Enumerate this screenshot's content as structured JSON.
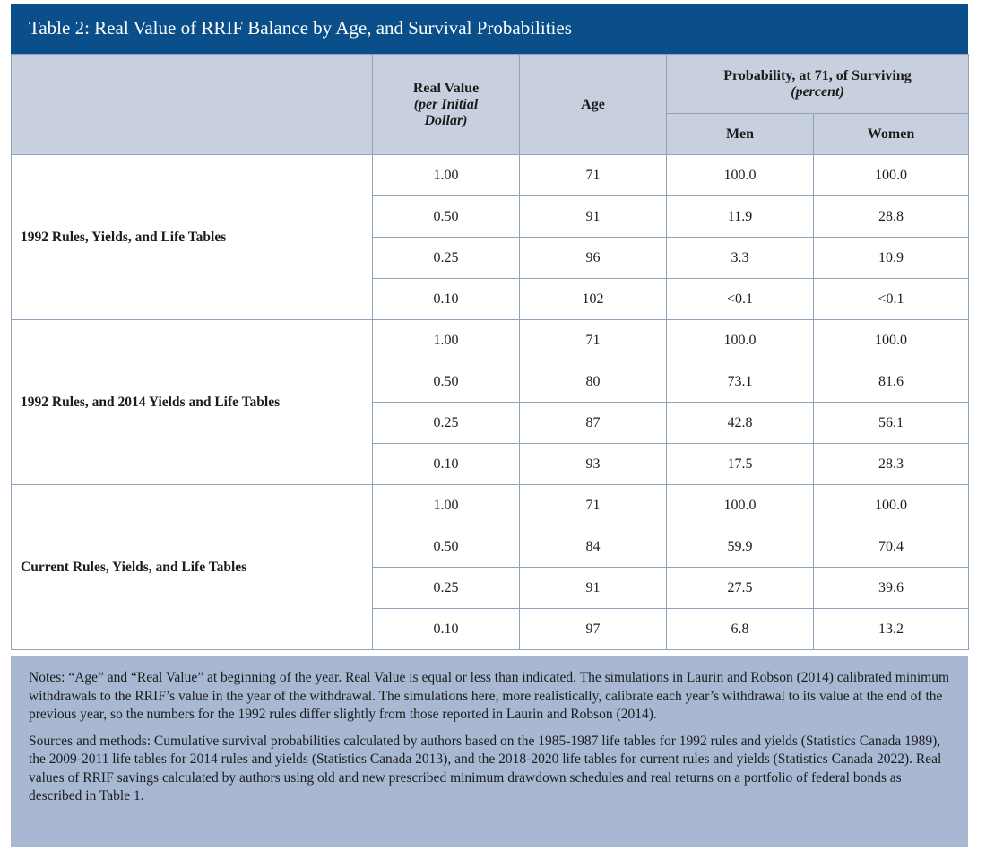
{
  "title": "Table 2: Real Value of RRIF Balance by Age, and Survival Probabilities",
  "headers": {
    "real_value": "Real Value",
    "real_value_sub": "(per Initial Dollar)",
    "age": "Age",
    "probability": "Probability, at 71, of Surviving",
    "probability_sub": "(percent)",
    "men": "Men",
    "women": "Women"
  },
  "groups": [
    {
      "label": "1992 Rules, Yields, and Life Tables",
      "rows": [
        {
          "value": "1.00",
          "age": "71",
          "men": "100.0",
          "women": "100.0"
        },
        {
          "value": "0.50",
          "age": "91",
          "men": "11.9",
          "women": "28.8"
        },
        {
          "value": "0.25",
          "age": "96",
          "men": "3.3",
          "women": "10.9"
        },
        {
          "value": "0.10",
          "age": "102",
          "men": "<0.1",
          "women": "<0.1"
        }
      ]
    },
    {
      "label": "1992 Rules, and 2014 Yields and Life Tables",
      "rows": [
        {
          "value": "1.00",
          "age": "71",
          "men": "100.0",
          "women": "100.0"
        },
        {
          "value": "0.50",
          "age": "80",
          "men": "73.1",
          "women": "81.6"
        },
        {
          "value": "0.25",
          "age": "87",
          "men": "42.8",
          "women": "56.1"
        },
        {
          "value": "0.10",
          "age": "93",
          "men": "17.5",
          "women": "28.3"
        }
      ]
    },
    {
      "label": "Current Rules, Yields, and Life Tables",
      "rows": [
        {
          "value": "1.00",
          "age": "71",
          "men": "100.0",
          "women": "100.0"
        },
        {
          "value": "0.50",
          "age": "84",
          "men": "59.9",
          "women": "70.4"
        },
        {
          "value": "0.25",
          "age": "91",
          "men": "27.5",
          "women": "39.6"
        },
        {
          "value": "0.10",
          "age": "97",
          "men": "6.8",
          "women": "13.2"
        }
      ]
    }
  ],
  "notes": "Notes: “Age” and “Real Value” at beginning of the year. Real Value is equal or less than indicated. The simulations in Laurin and Robson (2014) calibrated minimum withdrawals to the RRIF’s value in the year of the withdrawal. The simulations here, more realistically, calibrate each year’s withdrawal to its value at the end of the previous year, so the numbers for the 1992 rules differ slightly from those reported in Laurin and Robson (2014).",
  "sources": "Sources and methods: Cumulative survival probabilities calculated by authors based on the 1985-1987 life tables for 1992 rules and yields (Statistics Canada 1989), the 2009-2011 life tables for 2014 rules and yields (Statistics Canada 2013), and the 2018-2020 life tables for current rules and yields (Statistics Canada 2022). Real values of RRIF savings calculated by authors using old and new prescribed minimum drawdown schedules and real returns on a portfolio of federal bonds as described in Table 1.",
  "colors": {
    "title_bar": "#0b4f8a",
    "header_bg": "#c8d0df",
    "notes_bg": "#a8b7d2",
    "border": "#8fa3bd"
  }
}
